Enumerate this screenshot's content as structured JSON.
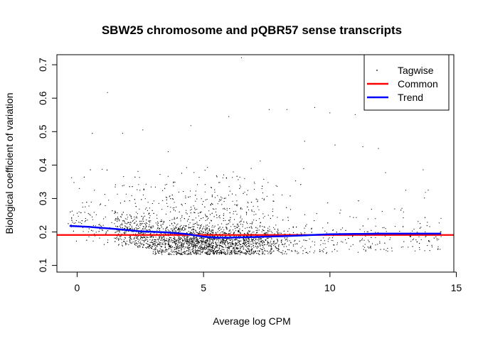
{
  "chart_data": {
    "type": "scatter",
    "title": "SBW25 chromosome and pQBR57 sense transcripts",
    "xlabel": "Average log CPM",
    "ylabel": "Biological coefficient of variation",
    "xlim": [
      -0.8,
      14.9
    ],
    "ylim": [
      0.08,
      0.73
    ],
    "xticks": [
      "0",
      "5",
      "10",
      "15"
    ],
    "xtick_values": [
      0,
      5,
      10,
      15
    ],
    "yticks": [
      "0.1",
      "0.2",
      "0.3",
      "0.4",
      "0.5",
      "0.6",
      "0.7"
    ],
    "ytick_values": [
      0.1,
      0.2,
      0.3,
      0.4,
      0.5,
      0.6,
      0.7
    ],
    "grid": false,
    "legend_position": "top-right",
    "legend": [
      "Tagwise",
      "Common",
      "Trend"
    ],
    "series": [
      {
        "name": "Tagwise",
        "kind": "points",
        "color": "#000000",
        "note_points": [
          [
            1.2,
            0.617
          ],
          [
            6.5,
            0.721
          ],
          [
            0.6,
            0.495
          ],
          [
            4.5,
            0.518
          ],
          [
            6.0,
            0.545
          ],
          [
            7.6,
            0.566
          ],
          [
            8.3,
            0.566
          ],
          [
            9.4,
            0.572
          ],
          [
            10.0,
            0.556
          ],
          [
            11.0,
            0.551
          ],
          [
            9.0,
            0.471
          ],
          [
            10.2,
            0.46
          ],
          [
            11.3,
            0.455
          ],
          [
            13.0,
            0.325
          ],
          [
            14.3,
            0.178
          ],
          [
            12.2,
            0.21
          ],
          [
            11.8,
            0.24
          ],
          [
            1.8,
            0.495
          ],
          [
            2.6,
            0.505
          ],
          [
            3.6,
            0.44
          ]
        ]
      },
      {
        "name": "Common",
        "kind": "hline",
        "color": "#ff0000",
        "y": 0.191
      },
      {
        "name": "Trend",
        "kind": "line",
        "color": "#0000ff",
        "x": [
          -0.3,
          0.5,
          1.5,
          2.5,
          3.5,
          4.3,
          5.0,
          5.5,
          6.0,
          7.0,
          8.0,
          9.0,
          10.0,
          11.0,
          12.0,
          13.0,
          14.4
        ],
        "y": [
          0.218,
          0.215,
          0.209,
          0.202,
          0.199,
          0.194,
          0.186,
          0.183,
          0.183,
          0.185,
          0.187,
          0.19,
          0.193,
          0.194,
          0.195,
          0.195,
          0.195
        ]
      }
    ]
  }
}
